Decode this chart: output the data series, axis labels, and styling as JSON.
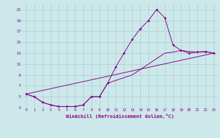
{
  "xlabel": "Windchill (Refroidissement éolien,°C)",
  "hours": [
    0,
    1,
    2,
    3,
    4,
    5,
    6,
    7,
    8,
    9,
    10,
    11,
    12,
    13,
    14,
    15,
    16,
    17,
    18,
    19,
    20,
    21,
    22,
    23
  ],
  "main_temps": [
    5.5,
    5.0,
    4.0,
    3.5,
    3.2,
    3.2,
    3.2,
    3.5,
    5.0,
    5.0,
    7.5,
    10.5,
    13.0,
    15.5,
    17.5,
    19.0,
    21.0,
    19.5,
    14.5,
    13.5,
    13.0,
    13.2,
    13.3,
    13.0
  ],
  "line2_temps": [
    5.5,
    5.0,
    4.0,
    3.5,
    3.2,
    3.2,
    3.2,
    3.5,
    5.0,
    5.0,
    7.5,
    8.0,
    8.5,
    9.0,
    10.0,
    11.0,
    12.0,
    13.0,
    13.2,
    13.5,
    13.3,
    13.2,
    13.3,
    13.0
  ],
  "bg_color": "#cce8ea",
  "grid_color": "#aacccc",
  "line_color": "#880088",
  "ylim": [
    3,
    22
  ],
  "yticks": [
    3,
    5,
    7,
    9,
    11,
    13,
    15,
    17,
    19,
    21
  ],
  "xticks": [
    0,
    1,
    2,
    3,
    4,
    5,
    6,
    7,
    8,
    9,
    10,
    11,
    12,
    13,
    14,
    15,
    16,
    17,
    18,
    19,
    20,
    21,
    22,
    23
  ]
}
